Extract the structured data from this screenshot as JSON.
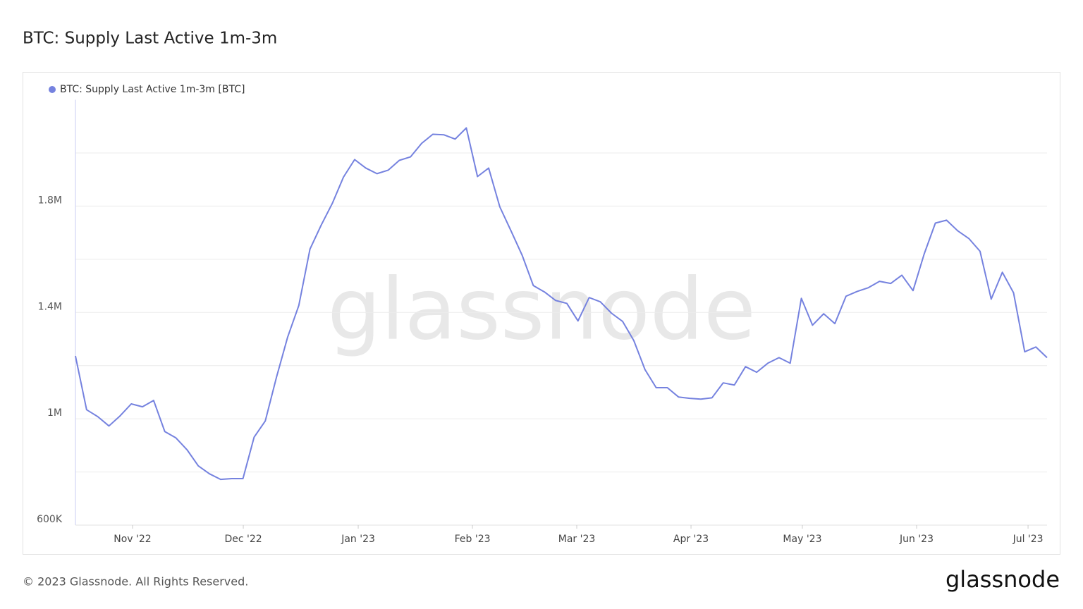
{
  "chart_data": {
    "type": "line",
    "title": "BTC: Supply Last Active 1m-3m",
    "watermark": "glassnode",
    "footer": "© 2023 Glassnode. All Rights Reserved.",
    "logo": "glassnode",
    "series": [
      {
        "name": "BTC: Supply Last Active 1m-3m [BTC]",
        "color": "#7582df",
        "values": [
          1236000,
          1034000,
          1008000,
          973000,
          1011000,
          1056000,
          1045000,
          1069000,
          952000,
          928000,
          883000,
          823000,
          793000,
          772000,
          775000,
          775000,
          931000,
          992000,
          1156000,
          1307000,
          1426000,
          1638000,
          1728000,
          1810000,
          1909000,
          1975000,
          1943000,
          1922000,
          1935000,
          1972000,
          1985000,
          2036000,
          2070000,
          2068000,
          2052000,
          2094000,
          1911000,
          1943000,
          1797000,
          1707000,
          1615000,
          1501000,
          1477000,
          1445000,
          1434000,
          1368000,
          1456000,
          1440000,
          1397000,
          1366000,
          1294000,
          1185000,
          1117000,
          1117000,
          1082000,
          1077000,
          1074000,
          1079000,
          1135000,
          1127000,
          1196000,
          1175000,
          1209000,
          1230000,
          1209000,
          1453000,
          1352000,
          1395000,
          1358000,
          1461000,
          1479000,
          1493000,
          1517000,
          1509000,
          1540000,
          1482000,
          1620000,
          1736000,
          1747000,
          1707000,
          1678000,
          1630000,
          1450000,
          1551000,
          1474000,
          1252000,
          1270000,
          1230000
        ]
      }
    ],
    "xlim": [
      0,
      87
    ],
    "xticks": [
      {
        "value": 5.11,
        "label": "Nov '22"
      },
      {
        "value": 15.03,
        "label": "Dec '22"
      },
      {
        "value": 25.32,
        "label": "Jan '23"
      },
      {
        "value": 35.55,
        "label": "Feb '23"
      },
      {
        "value": 44.89,
        "label": "Mar '23"
      },
      {
        "value": 55.12,
        "label": "Apr '23"
      },
      {
        "value": 65.09,
        "label": "May '23"
      },
      {
        "value": 75.32,
        "label": "Jun '23"
      },
      {
        "value": 85.3,
        "label": "Jul '23"
      }
    ],
    "ylim": [
      600000,
      2200000
    ],
    "yticks": [
      {
        "value": 600000,
        "label": "600K"
      },
      {
        "value": 1000000,
        "label": "1M"
      },
      {
        "value": 1400000,
        "label": "1.4M"
      },
      {
        "value": 1800000,
        "label": "1.8M"
      }
    ],
    "ygrid": [
      800000,
      1200000,
      1600000,
      2000000
    ],
    "grid": true
  }
}
